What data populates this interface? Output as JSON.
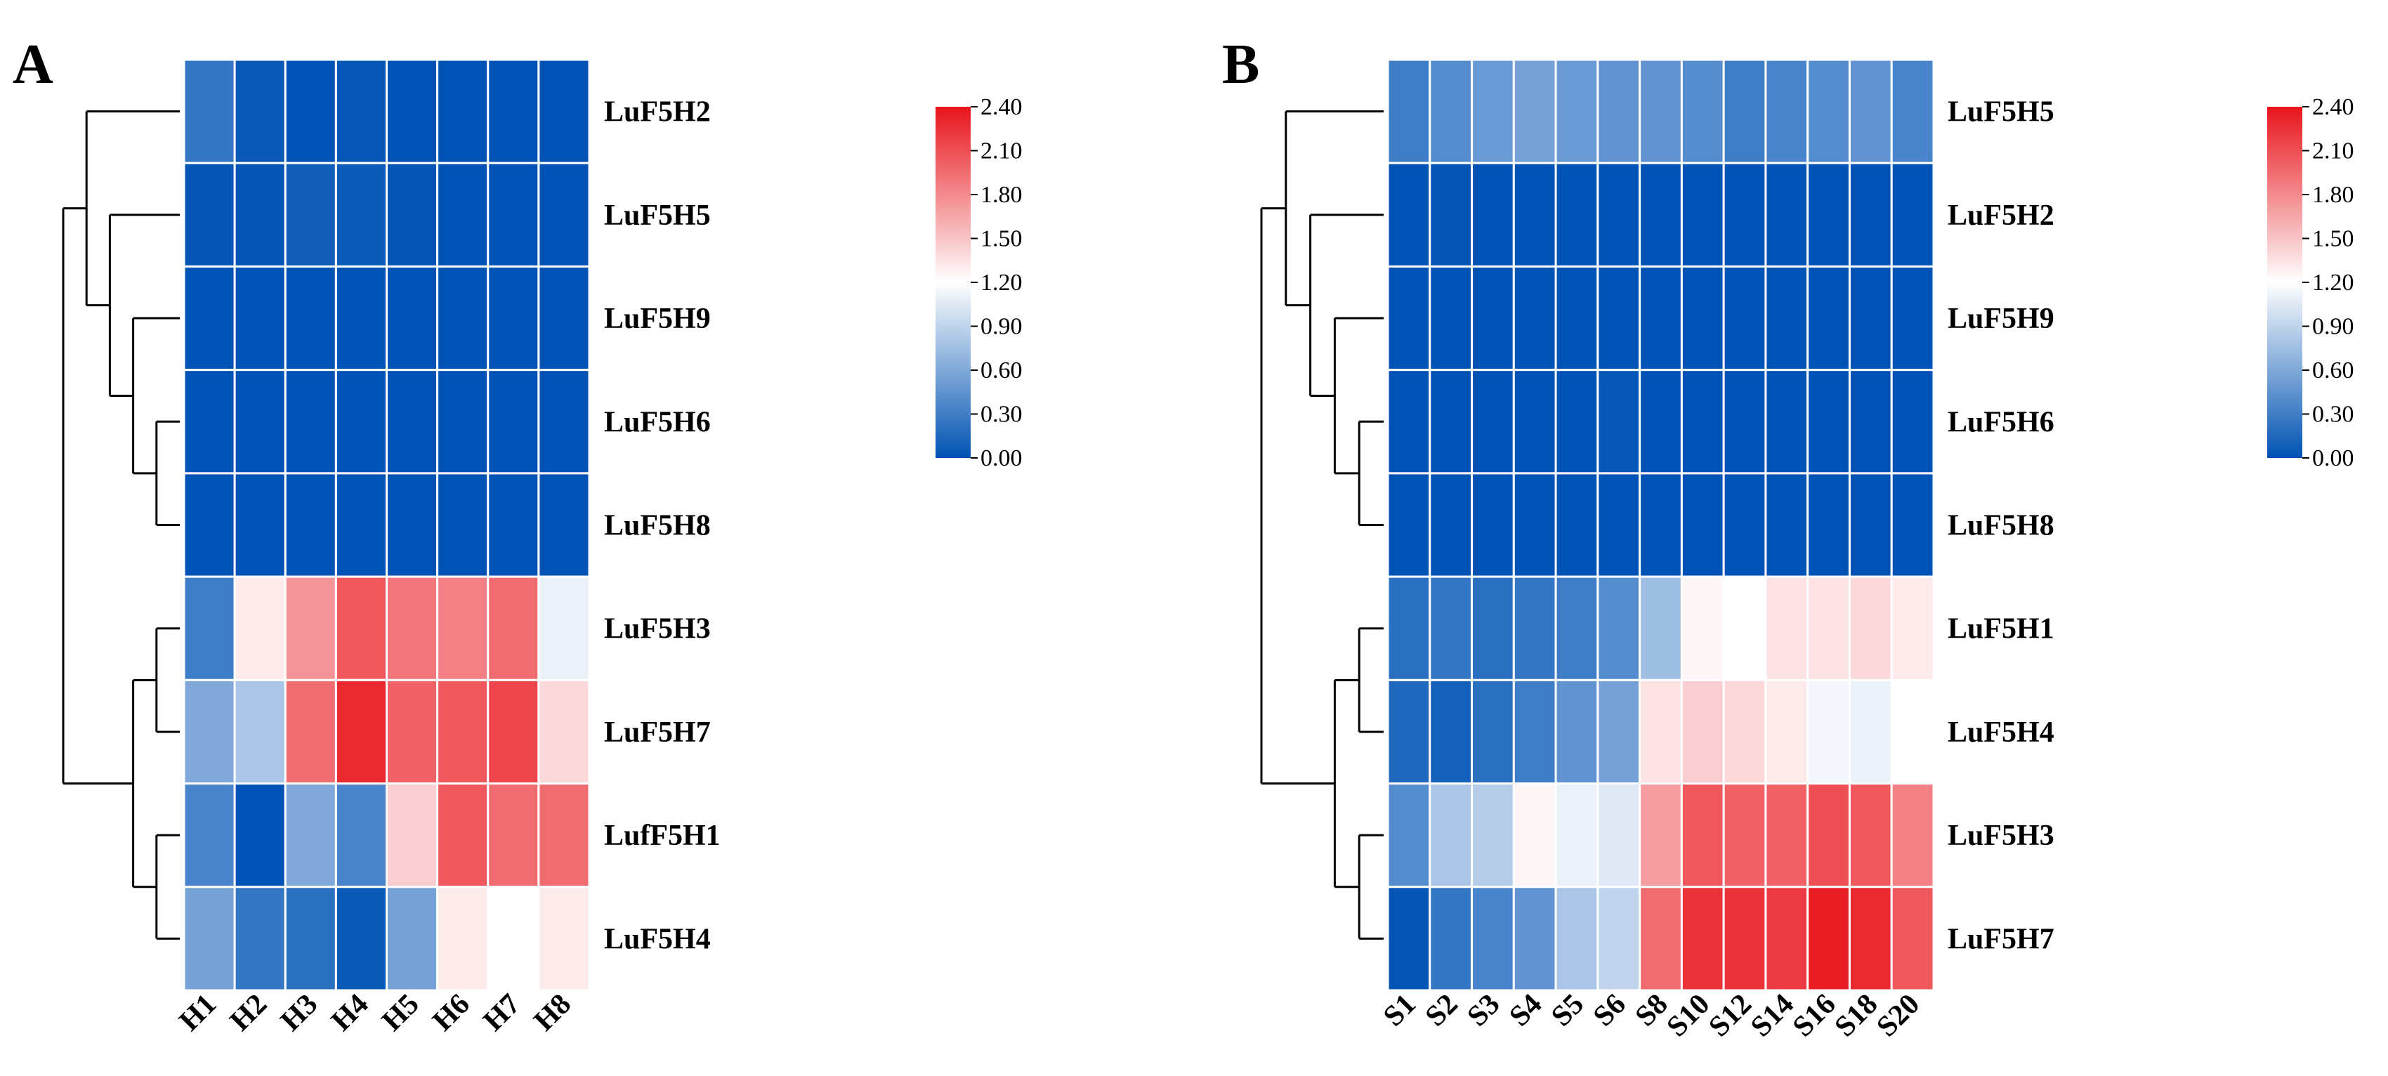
{
  "chart_data": [
    {
      "type": "heatmap",
      "panel_label": "A",
      "columns": [
        "H1",
        "H2",
        "H3",
        "H4",
        "H5",
        "H6",
        "H7",
        "H8"
      ],
      "rows": [
        "LuF5H2",
        "LuF5H5",
        "LuF5H9",
        "LuF5H6",
        "LuF5H8",
        "LuF5H3",
        "LuF5H7",
        "LufF5H1",
        "LuF5H4"
      ],
      "values": [
        [
          0.25,
          0.05,
          0.0,
          0.03,
          0.0,
          0.0,
          0.0,
          0.0
        ],
        [
          0.02,
          0.02,
          0.08,
          0.06,
          0.02,
          0.0,
          0.0,
          0.0
        ],
        [
          0.0,
          0.0,
          0.0,
          0.0,
          0.0,
          0.0,
          0.0,
          0.0
        ],
        [
          0.0,
          0.0,
          0.0,
          0.0,
          0.0,
          0.0,
          0.0,
          0.0
        ],
        [
          0.0,
          0.0,
          0.0,
          0.0,
          0.0,
          0.0,
          0.0,
          0.0
        ],
        [
          0.3,
          1.3,
          1.75,
          2.05,
          1.9,
          1.85,
          1.95,
          1.1
        ],
        [
          0.6,
          0.8,
          1.95,
          2.3,
          2.0,
          2.05,
          2.15,
          1.4
        ],
        [
          0.35,
          0.0,
          0.6,
          0.35,
          1.45,
          2.05,
          1.95,
          1.95
        ],
        [
          0.55,
          0.25,
          0.2,
          0.05,
          0.55,
          1.3,
          1.2,
          1.3
        ]
      ],
      "dendrogram": {
        "type": "node",
        "children": [
          {
            "type": "node",
            "children": [
              {
                "type": "leaf",
                "row": 0
              },
              {
                "type": "node",
                "children": [
                  {
                    "type": "leaf",
                    "row": 1
                  },
                  {
                    "type": "node",
                    "children": [
                      {
                        "type": "leaf",
                        "row": 2
                      },
                      {
                        "type": "node",
                        "children": [
                          {
                            "type": "leaf",
                            "row": 3
                          },
                          {
                            "type": "leaf",
                            "row": 4
                          }
                        ]
                      }
                    ]
                  }
                ]
              }
            ]
          },
          {
            "type": "node",
            "children": [
              {
                "type": "node",
                "children": [
                  {
                    "type": "leaf",
                    "row": 5
                  },
                  {
                    "type": "leaf",
                    "row": 6
                  }
                ]
              },
              {
                "type": "node",
                "children": [
                  {
                    "type": "leaf",
                    "row": 7
                  },
                  {
                    "type": "leaf",
                    "row": 8
                  }
                ]
              }
            ]
          }
        ]
      },
      "colorbar": {
        "min": 0.0,
        "max": 2.4,
        "ticks": [
          "2.40",
          "2.10",
          "1.80",
          "1.50",
          "1.20",
          "0.90",
          "0.60",
          "0.30",
          "0.00"
        ],
        "colors": {
          "low": "#0052b4",
          "mid": "#ffffff",
          "high": "#e8141c"
        }
      }
    },
    {
      "type": "heatmap",
      "panel_label": "B",
      "columns": [
        "S1",
        "S2",
        "S3",
        "S4",
        "S5",
        "S6",
        "S8",
        "S10",
        "S12",
        "S14",
        "S16",
        "S18",
        "S20"
      ],
      "rows": [
        "LuF5H5",
        "LuF5H2",
        "LuF5H9",
        "LuF5H6",
        "LuF5H8",
        "LuF5H1",
        "LuF5H4",
        "LuF5H3",
        "LuF5H7"
      ],
      "values": [
        [
          0.3,
          0.4,
          0.5,
          0.55,
          0.5,
          0.45,
          0.45,
          0.4,
          0.3,
          0.35,
          0.4,
          0.45,
          0.35
        ],
        [
          0.0,
          0.02,
          0.0,
          0.0,
          0.0,
          0.0,
          0.0,
          0.0,
          0.0,
          0.0,
          0.0,
          0.0,
          0.0
        ],
        [
          0.0,
          0.0,
          0.0,
          0.0,
          0.0,
          0.0,
          0.0,
          0.0,
          0.0,
          0.0,
          0.0,
          0.0,
          0.0
        ],
        [
          0.0,
          0.0,
          0.0,
          0.0,
          0.0,
          0.03,
          0.0,
          0.0,
          0.0,
          0.0,
          0.0,
          0.0,
          0.0
        ],
        [
          0.0,
          0.0,
          0.0,
          0.0,
          0.0,
          0.0,
          0.0,
          0.0,
          0.0,
          0.0,
          0.0,
          0.0,
          0.0
        ],
        [
          0.2,
          0.25,
          0.2,
          0.25,
          0.3,
          0.4,
          0.75,
          1.25,
          1.2,
          1.35,
          1.35,
          1.4,
          1.3
        ],
        [
          0.15,
          0.1,
          0.2,
          0.3,
          0.45,
          0.55,
          1.35,
          1.45,
          1.4,
          1.3,
          1.15,
          1.1,
          1.2
        ],
        [
          0.4,
          0.8,
          0.85,
          1.25,
          1.1,
          1.05,
          1.7,
          2.05,
          2.0,
          2.0,
          2.1,
          2.05,
          1.85
        ],
        [
          0.02,
          0.25,
          0.35,
          0.45,
          0.8,
          0.9,
          1.95,
          2.25,
          2.25,
          2.2,
          2.35,
          2.3,
          2.05
        ]
      ],
      "dendrogram": {
        "type": "node",
        "children": [
          {
            "type": "node",
            "children": [
              {
                "type": "leaf",
                "row": 0
              },
              {
                "type": "node",
                "children": [
                  {
                    "type": "leaf",
                    "row": 1
                  },
                  {
                    "type": "node",
                    "children": [
                      {
                        "type": "leaf",
                        "row": 2
                      },
                      {
                        "type": "node",
                        "children": [
                          {
                            "type": "leaf",
                            "row": 3
                          },
                          {
                            "type": "leaf",
                            "row": 4
                          }
                        ]
                      }
                    ]
                  }
                ]
              }
            ]
          },
          {
            "type": "node",
            "children": [
              {
                "type": "node",
                "children": [
                  {
                    "type": "leaf",
                    "row": 5
                  },
                  {
                    "type": "leaf",
                    "row": 6
                  }
                ]
              },
              {
                "type": "node",
                "children": [
                  {
                    "type": "leaf",
                    "row": 7
                  },
                  {
                    "type": "leaf",
                    "row": 8
                  }
                ]
              }
            ]
          }
        ]
      },
      "colorbar": {
        "min": 0.0,
        "max": 2.4,
        "ticks": [
          "2.40",
          "2.10",
          "1.80",
          "1.50",
          "1.20",
          "0.90",
          "0.60",
          "0.30",
          "0.00"
        ],
        "colors": {
          "low": "#0052b4",
          "mid": "#ffffff",
          "high": "#e8141c"
        }
      }
    }
  ]
}
